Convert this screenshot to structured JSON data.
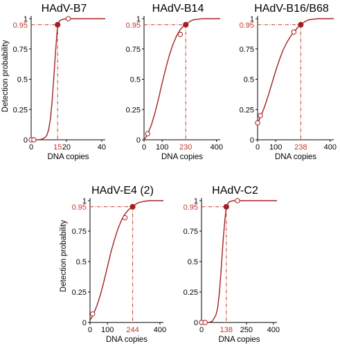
{
  "style": {
    "curve_color": "#a31f1f",
    "axis_color": "#000000",
    "threshold_color": "#c0392b"
  },
  "ylabel_left": "Detection probability",
  "chart_data": [
    {
      "type": "line",
      "title": "HAdV-B7",
      "xlabel": "DNA copies",
      "ylabel": "Detection probability",
      "xlim": [
        0,
        42
      ],
      "ylim": [
        0,
        1
      ],
      "xticks": [
        0,
        20,
        40
      ],
      "xtick_labels": [
        "0",
        "20",
        "40"
      ],
      "yticks": [
        0,
        0.25,
        0.5,
        0.75,
        1
      ],
      "ytick_labels": [
        "0",
        "0.25",
        "0.5",
        "0.75",
        "1"
      ],
      "x": [
        0,
        2,
        4,
        6,
        8,
        9,
        10,
        11,
        12,
        13,
        14,
        15,
        16,
        17,
        18,
        20,
        22,
        26,
        30,
        35,
        42
      ],
      "y": [
        0,
        0,
        0,
        0.005,
        0.02,
        0.04,
        0.09,
        0.18,
        0.34,
        0.55,
        0.76,
        0.95,
        0.98,
        0.99,
        0.995,
        0.999,
        1,
        1,
        1,
        1,
        1
      ],
      "open_points": [
        [
          0,
          0
        ],
        [
          1.5,
          0
        ],
        [
          21,
          1
        ]
      ],
      "threshold": {
        "x": 15,
        "y": 0.95,
        "x_label": "15",
        "y_label": "0.95"
      }
    },
    {
      "type": "line",
      "title": "HAdV-B14",
      "xlabel": "DNA copies",
      "ylabel": "Detection probability",
      "xlim": [
        0,
        420
      ],
      "ylim": [
        0,
        1
      ],
      "xticks": [
        0,
        100,
        400
      ],
      "xtick_labels": [
        "0",
        "100",
        "400"
      ],
      "yticks": [
        0,
        0.25,
        0.5,
        0.75,
        1
      ],
      "ytick_labels": [
        "0",
        "0.25",
        "0.5",
        "0.75",
        "1"
      ],
      "x": [
        0,
        10,
        20,
        40,
        60,
        80,
        100,
        120,
        140,
        160,
        180,
        200,
        215,
        230,
        250,
        270,
        300,
        330,
        360,
        400,
        420
      ],
      "y": [
        0,
        0.02,
        0.05,
        0.12,
        0.22,
        0.34,
        0.47,
        0.59,
        0.7,
        0.79,
        0.86,
        0.91,
        0.935,
        0.95,
        0.975,
        0.99,
        0.997,
        1,
        1,
        1,
        1
      ],
      "open_points": [
        [
          20,
          0.05
        ],
        [
          200,
          0.87
        ]
      ],
      "threshold": {
        "x": 230,
        "y": 0.95,
        "x_label": "230",
        "y_label": "0.95"
      }
    },
    {
      "type": "line",
      "title": "HAdV-B16/B68",
      "xlabel": "DNA copies",
      "ylabel": "Detection probability",
      "xlim": [
        0,
        420
      ],
      "ylim": [
        0,
        1
      ],
      "xticks": [
        0,
        100,
        400
      ],
      "xtick_labels": [
        "0",
        "100",
        "400"
      ],
      "yticks": [
        0,
        0.25,
        0.5,
        0.75,
        1
      ],
      "ytick_labels": [
        "0",
        "0.25",
        "0.5",
        "0.75",
        "1"
      ],
      "x": [
        0,
        10,
        20,
        40,
        60,
        80,
        100,
        120,
        140,
        160,
        180,
        200,
        220,
        238,
        260,
        280,
        310,
        340,
        370,
        420
      ],
      "y": [
        0.14,
        0.17,
        0.2,
        0.28,
        0.37,
        0.47,
        0.57,
        0.66,
        0.74,
        0.8,
        0.85,
        0.89,
        0.925,
        0.95,
        0.975,
        0.99,
        0.997,
        1,
        1,
        1
      ],
      "open_points": [
        [
          0,
          0.14
        ],
        [
          15,
          0.2
        ],
        [
          200,
          0.89
        ]
      ],
      "threshold": {
        "x": 238,
        "y": 0.95,
        "x_label": "238",
        "y_label": "0.95"
      }
    },
    {
      "type": "line",
      "title": "HAdV-E4 (2)",
      "xlabel": "DNA copies",
      "ylabel": "Detection probability",
      "xlim": [
        0,
        420
      ],
      "ylim": [
        0,
        1
      ],
      "xticks": [
        0,
        100,
        400
      ],
      "xtick_labels": [
        "0",
        "100",
        "400"
      ],
      "yticks": [
        0,
        0.25,
        0.5,
        0.75,
        1
      ],
      "ytick_labels": [
        "0",
        "0.25",
        "0.5",
        "0.75",
        "1"
      ],
      "x": [
        0,
        10,
        20,
        40,
        60,
        80,
        100,
        120,
        140,
        160,
        180,
        200,
        220,
        244,
        260,
        280,
        310,
        340,
        370,
        420
      ],
      "y": [
        0.02,
        0.04,
        0.07,
        0.14,
        0.23,
        0.34,
        0.46,
        0.58,
        0.68,
        0.77,
        0.84,
        0.89,
        0.925,
        0.95,
        0.97,
        0.985,
        0.995,
        1,
        1,
        1
      ],
      "open_points": [
        [
          15,
          0.07
        ],
        [
          200,
          0.86
        ]
      ],
      "threshold": {
        "x": 244,
        "y": 0.95,
        "x_label": "244",
        "y_label": "0.95"
      }
    },
    {
      "type": "line",
      "title": "HAdV-C2",
      "xlabel": "DNA copies",
      "ylabel": "Detection probability",
      "xlim": [
        0,
        420
      ],
      "ylim": [
        0,
        1
      ],
      "xticks": [
        0,
        250,
        400
      ],
      "xtick_labels": [
        "0",
        "250",
        "400"
      ],
      "yticks": [
        0,
        0.25,
        0.5,
        0.75,
        1
      ],
      "ytick_labels": [
        "0",
        "0.25",
        "0.5",
        "0.75",
        "1"
      ],
      "x": [
        0,
        20,
        40,
        60,
        80,
        90,
        100,
        110,
        120,
        130,
        138,
        150,
        160,
        180,
        200,
        250,
        300,
        350,
        420
      ],
      "y": [
        0,
        0,
        0,
        0.01,
        0.06,
        0.12,
        0.25,
        0.45,
        0.67,
        0.84,
        0.95,
        0.985,
        0.995,
        1,
        1,
        1,
        1,
        1,
        1
      ],
      "open_points": [
        [
          0,
          0
        ],
        [
          20,
          0
        ],
        [
          200,
          1
        ]
      ],
      "threshold": {
        "x": 138,
        "y": 0.95,
        "x_label": "138",
        "y_label": "0.95"
      }
    }
  ]
}
